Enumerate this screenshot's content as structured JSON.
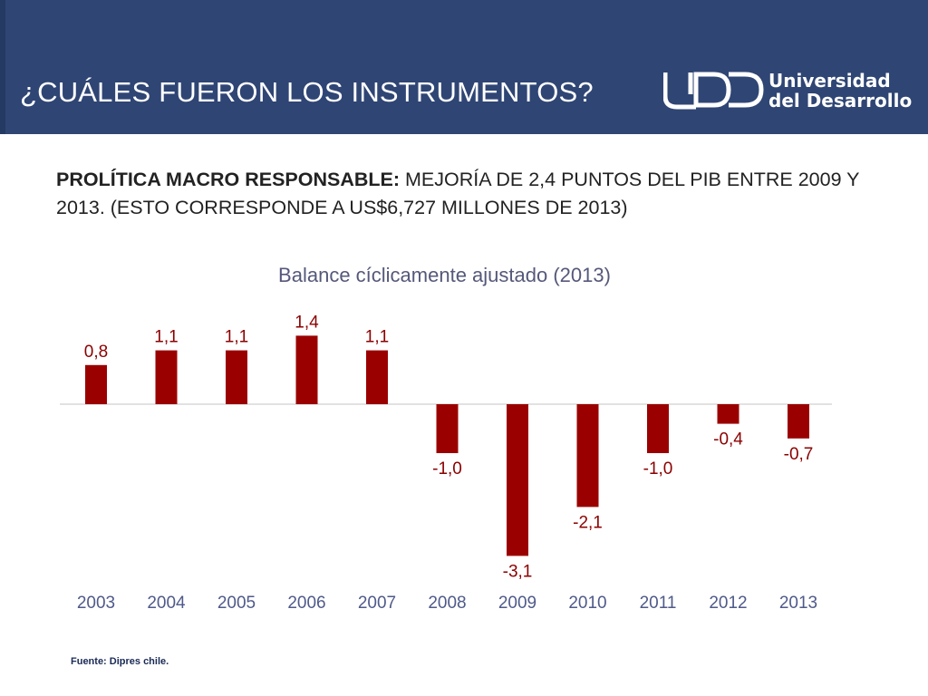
{
  "header": {
    "title": "¿CUÁLES FUERON LOS INSTRUMENTOS?",
    "logo_mark": "UDD",
    "logo_line1": "Universidad",
    "logo_line2": "del Desarrollo"
  },
  "subtitle": {
    "bold": "PROLÍTICA MACRO RESPONSABLE:",
    "text": " MEJORÍA DE 2,4 PUNTOS DEL PIB ENTRE 2009 Y 2013. (ESTO CORRESPONDE A US$6,727 MILLONES DE 2013)"
  },
  "colors": {
    "header_bg": "#2f4574",
    "bar": "#9b0000",
    "label": "#8b0000",
    "axis_tick": "#4f5a8a"
  },
  "source": "Fuente: Dipres chile.",
  "chart_data": {
    "type": "bar",
    "title": "Balance cíclicamente ajustado (2013)",
    "categories": [
      "2003",
      "2004",
      "2005",
      "2006",
      "2007",
      "2008",
      "2009",
      "2010",
      "2011",
      "2012",
      "2013"
    ],
    "values": [
      0.8,
      1.1,
      1.1,
      1.4,
      1.1,
      -1.0,
      -3.1,
      -2.1,
      -1.0,
      -0.4,
      -0.7
    ],
    "value_labels": [
      "0,8",
      "1,1",
      "1,1",
      "1,4",
      "1,1",
      "-1,0",
      "-3,1",
      "-2,1",
      "-1,0",
      "-0,4",
      "-0,7"
    ],
    "xlabel": "",
    "ylabel": "",
    "ylim": [
      -3.1,
      1.4
    ],
    "grid": false,
    "legend": "none"
  }
}
